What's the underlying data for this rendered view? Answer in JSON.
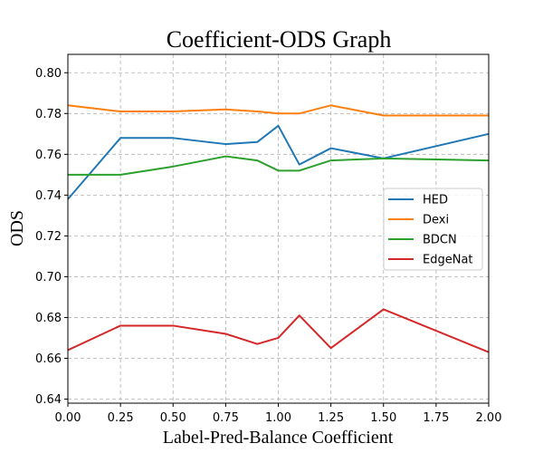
{
  "chart_data": {
    "type": "line",
    "title": "Coefficient-ODS Graph",
    "xlabel": "Label-Pred-Balance Coefficient",
    "ylabel": "ODS",
    "xlim": [
      0.0,
      2.0
    ],
    "ylim": [
      0.638,
      0.809
    ],
    "xticks": [
      0.0,
      0.25,
      0.5,
      0.75,
      1.0,
      1.25,
      1.5,
      1.75,
      2.0
    ],
    "xtick_labels": [
      "0.00",
      "0.25",
      "0.50",
      "0.75",
      "1.00",
      "1.25",
      "1.50",
      "1.75",
      "2.00"
    ],
    "yticks": [
      0.64,
      0.66,
      0.68,
      0.7,
      0.72,
      0.74,
      0.76,
      0.78,
      0.8
    ],
    "ytick_labels": [
      "0.64",
      "0.66",
      "0.68",
      "0.70",
      "0.72",
      "0.74",
      "0.76",
      "0.78",
      "0.80"
    ],
    "grid": true,
    "legend_position": "center-right",
    "x": [
      0.0,
      0.25,
      0.5,
      0.75,
      0.9,
      1.0,
      1.1,
      1.25,
      1.5,
      2.0
    ],
    "series": [
      {
        "name": "HED",
        "color": "#1f77b4",
        "values": [
          0.738,
          0.768,
          0.768,
          0.765,
          0.766,
          0.774,
          0.755,
          0.763,
          0.758,
          0.77
        ]
      },
      {
        "name": "Dexi",
        "color": "#ff7f0e",
        "values": [
          0.784,
          0.781,
          0.781,
          0.782,
          0.781,
          0.78,
          0.78,
          0.784,
          0.779,
          0.779
        ]
      },
      {
        "name": "BDCN",
        "color": "#2ca02c",
        "values": [
          0.75,
          0.75,
          0.754,
          0.759,
          0.757,
          0.752,
          0.752,
          0.757,
          0.758,
          0.757
        ]
      },
      {
        "name": "EdgeNat",
        "color": "#d62728",
        "values": [
          0.664,
          0.676,
          0.676,
          0.672,
          0.667,
          0.67,
          0.681,
          0.665,
          0.684,
          0.663
        ]
      }
    ]
  }
}
